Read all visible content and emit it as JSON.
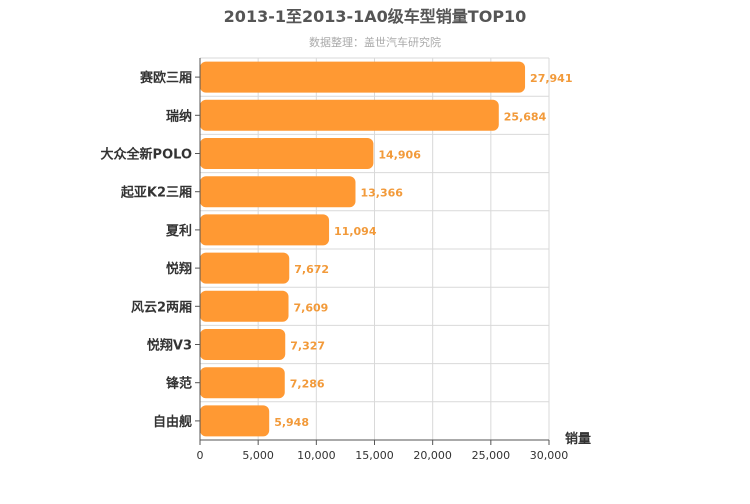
{
  "chart_data": {
    "type": "bar",
    "orientation": "horizontal",
    "title": "2013-1至2013-1A0级车型销量TOP10",
    "subtitle": "数据整理：盖世汽车研究院",
    "xlabel": "销量",
    "ylabel": "",
    "xlim": [
      0,
      30000
    ],
    "x_ticks": [
      "0",
      "5,000",
      "10,000",
      "15,000",
      "20,000",
      "25,000",
      "30,000"
    ],
    "grid": true,
    "legend": "none",
    "categories": [
      "赛欧三厢",
      "瑞纳",
      "大众全新POLO",
      "起亚K2三厢",
      "夏利",
      "悦翔",
      "风云2两厢",
      "悦翔V3",
      "锋范",
      "自由舰"
    ],
    "values": [
      27941,
      25684,
      14906,
      13366,
      11094,
      7672,
      7609,
      7327,
      7286,
      5948
    ],
    "value_labels": [
      "27,941",
      "25,684",
      "14,906",
      "13,366",
      "11,094",
      "7,672",
      "7,609",
      "7,327",
      "7,286",
      "5,948"
    ],
    "colors": {
      "bar": "#ff9933",
      "value_label": "#f29a3a",
      "grid": "#d9d9d9",
      "axis": "#555555",
      "title": "#555555",
      "subtitle": "#aaaaaa",
      "category_label": "#333333"
    }
  }
}
